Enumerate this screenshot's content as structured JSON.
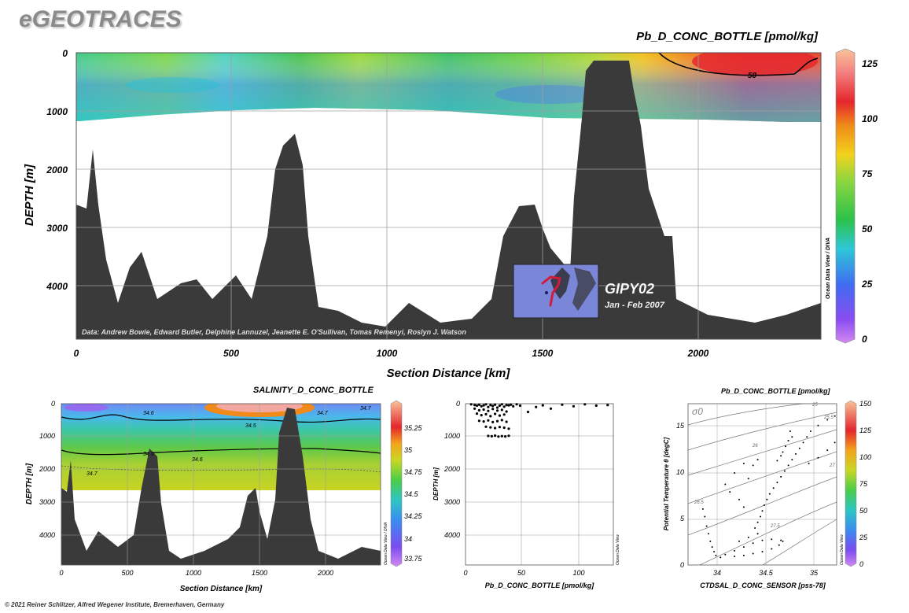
{
  "brand": "eGEOTRACES",
  "footer": "© 2021 Reiner Schlitzer, Alfred Wegener Institute, Bremerhaven, Germany",
  "colors": {
    "bathymetry": "#3a3a3a",
    "grid": "#a0a0a0"
  },
  "chart_data": [
    {
      "type": "heatmap",
      "title": "Pb_D_CONC_BOTTLE [pmol/kg]",
      "xlabel": "Section Distance [km]",
      "ylabel": "DEPTH [m]",
      "xlim": [
        0,
        2380
      ],
      "ylim": [
        4900,
        0
      ],
      "xticks": [
        "0",
        "500",
        "1000",
        "1500",
        "2000"
      ],
      "yticks": [
        "0",
        "1000",
        "2000",
        "3000",
        "4000"
      ],
      "colorbar": {
        "ticks": [
          "0",
          "25",
          "50",
          "75",
          "100",
          "125"
        ],
        "range": [
          0,
          130
        ],
        "label": "Ocean Data View / DIVA"
      },
      "contour_labels": [
        "50"
      ],
      "credit": "Data: Andrew Bowie, Edward Butler, Delphine Lannuzel, Jeanette E. O'Sullivan, Tomas Remenyi, Roslyn J. Watson",
      "inset": {
        "cruise": "GIPY02",
        "dates": "Jan - Feb 2007"
      }
    },
    {
      "type": "heatmap",
      "title": "SALINITY_D_CONC_BOTTLE",
      "xlabel": "Section Distance [km]",
      "ylabel": "DEPTH [m]",
      "xlim": [
        0,
        2380
      ],
      "ylim": [
        4900,
        0
      ],
      "xticks": [
        "0",
        "500",
        "1000",
        "1500",
        "2000"
      ],
      "yticks": [
        "0",
        "1000",
        "2000",
        "3000",
        "4000"
      ],
      "colorbar": {
        "ticks": [
          "33.75",
          "34",
          "34.25",
          "34.5",
          "34.75",
          "35",
          "35.25"
        ],
        "range": [
          33.65,
          35.35
        ],
        "label": "Ocean Data View / DIVA"
      },
      "contour_labels": [
        "34.6",
        "34.7",
        "34.5",
        "34.5",
        "34.6",
        "34.7",
        "34.7"
      ]
    },
    {
      "type": "scatter",
      "xlabel": "Pb_D_CONC_BOTTLE [pmol/kg]",
      "ylabel": "DEPTH [m]",
      "xlim": [
        0,
        130
      ],
      "ylim": [
        4900,
        0
      ],
      "xticks": [
        "0",
        "50",
        "100"
      ],
      "yticks": [
        "0",
        "1000",
        "2000",
        "3000",
        "4000"
      ],
      "side_label": "Ocean Data View",
      "points": [
        [
          5,
          20
        ],
        [
          8,
          40
        ],
        [
          10,
          60
        ],
        [
          12,
          30
        ],
        [
          14,
          80
        ],
        [
          16,
          50
        ],
        [
          18,
          20
        ],
        [
          20,
          100
        ],
        [
          22,
          40
        ],
        [
          24,
          70
        ],
        [
          26,
          30
        ],
        [
          28,
          120
        ],
        [
          30,
          60
        ],
        [
          32,
          20
        ],
        [
          34,
          90
        ],
        [
          36,
          40
        ],
        [
          38,
          50
        ],
        [
          40,
          30
        ],
        [
          42,
          80
        ],
        [
          45,
          20
        ],
        [
          48,
          60
        ],
        [
          8,
          150
        ],
        [
          12,
          200
        ],
        [
          16,
          180
        ],
        [
          20,
          220
        ],
        [
          24,
          160
        ],
        [
          28,
          210
        ],
        [
          32,
          190
        ],
        [
          36,
          240
        ],
        [
          10,
          300
        ],
        [
          14,
          350
        ],
        [
          18,
          320
        ],
        [
          22,
          380
        ],
        [
          26,
          310
        ],
        [
          30,
          360
        ],
        [
          34,
          330
        ],
        [
          12,
          520
        ],
        [
          16,
          540
        ],
        [
          20,
          510
        ],
        [
          24,
          560
        ],
        [
          28,
          530
        ],
        [
          32,
          500
        ],
        [
          36,
          550
        ],
        [
          18,
          700
        ],
        [
          22,
          720
        ],
        [
          26,
          740
        ],
        [
          30,
          710
        ],
        [
          34,
          730
        ],
        [
          38,
          760
        ],
        [
          20,
          980
        ],
        [
          23,
          990
        ],
        [
          26,
          970
        ],
        [
          29,
          1000
        ],
        [
          32,
          985
        ],
        [
          35,
          995
        ],
        [
          38,
          975
        ],
        [
          55,
          250
        ],
        [
          62,
          100
        ],
        [
          68,
          50
        ],
        [
          75,
          150
        ],
        [
          85,
          30
        ],
        [
          95,
          80
        ],
        [
          105,
          20
        ],
        [
          115,
          60
        ],
        [
          125,
          40
        ]
      ]
    },
    {
      "type": "scatter",
      "title": "Pb_D_CONC_BOTTLE [pmol/kg]",
      "xlabel": "CTDSAL_D_CONC_SENSOR [pss-78]",
      "ylabel": "Potential Temperature θ [degC]",
      "xlim": [
        33.7,
        35.3
      ],
      "ylim": [
        -0.5,
        16.5
      ],
      "xticks": [
        "34",
        "34.5",
        "35"
      ],
      "yticks": [
        "0",
        "5",
        "10",
        "15"
      ],
      "sigma_label": "σ0",
      "isopycnal_labels": [
        "25",
        "25.5",
        "26",
        "26.5",
        "27",
        "27.5"
      ],
      "colorbar": {
        "ticks": [
          "0",
          "25",
          "50",
          "75",
          "100",
          "125",
          "150"
        ],
        "range": [
          0,
          150
        ],
        "label": "Ocean Data View"
      },
      "points": [
        [
          33.86,
          5.4
        ],
        [
          33.88,
          4.6
        ],
        [
          33.9,
          3.6
        ],
        [
          33.92,
          2.8
        ],
        [
          33.94,
          2.0
        ],
        [
          33.96,
          1.4
        ],
        [
          33.98,
          0.9
        ],
        [
          34.0,
          0.5
        ],
        [
          34.05,
          0.3
        ],
        [
          34.1,
          0.6
        ],
        [
          34.2,
          1.0
        ],
        [
          34.3,
          1.4
        ],
        [
          34.4,
          1.8
        ],
        [
          34.5,
          2.1
        ],
        [
          34.6,
          2.2
        ],
        [
          34.7,
          2.1
        ],
        [
          34.72,
          2.0
        ],
        [
          34.68,
          1.6
        ],
        [
          34.6,
          1.2
        ],
        [
          34.5,
          0.9
        ],
        [
          34.4,
          0.7
        ],
        [
          34.3,
          0.5
        ],
        [
          34.2,
          0.4
        ],
        [
          34.25,
          2.0
        ],
        [
          34.35,
          2.4
        ],
        [
          34.45,
          2.8
        ],
        [
          34.42,
          3.4
        ],
        [
          34.45,
          4.0
        ],
        [
          34.48,
          4.6
        ],
        [
          34.5,
          5.2
        ],
        [
          34.52,
          5.8
        ],
        [
          34.55,
          6.4
        ],
        [
          34.58,
          7.0
        ],
        [
          34.62,
          7.6
        ],
        [
          34.66,
          8.2
        ],
        [
          34.7,
          8.8
        ],
        [
          34.74,
          9.4
        ],
        [
          34.78,
          10.0
        ],
        [
          34.82,
          10.6
        ],
        [
          34.86,
          11.2
        ],
        [
          34.9,
          11.8
        ],
        [
          34.94,
          12.4
        ],
        [
          34.98,
          13.0
        ],
        [
          35.02,
          13.6
        ],
        [
          35.1,
          14.2
        ],
        [
          35.2,
          14.8
        ],
        [
          35.28,
          15.2
        ],
        [
          34.8,
          13.6
        ],
        [
          34.82,
          13.0
        ],
        [
          34.78,
          12.6
        ],
        [
          34.75,
          12.0
        ],
        [
          34.72,
          11.4
        ],
        [
          34.7,
          11.0
        ],
        [
          34.66,
          10.5
        ],
        [
          35.0,
          10.2
        ],
        [
          35.1,
          10.8
        ],
        [
          35.2,
          11.6
        ],
        [
          35.28,
          12.4
        ],
        [
          34.2,
          9.2
        ],
        [
          34.1,
          8.0
        ],
        [
          34.15,
          7.2
        ],
        [
          34.25,
          6.4
        ],
        [
          34.3,
          5.6
        ],
        [
          34.35,
          8.6
        ],
        [
          34.4,
          10.0
        ],
        [
          34.45,
          10.6
        ],
        [
          34.3,
          10.2
        ]
      ]
    }
  ]
}
